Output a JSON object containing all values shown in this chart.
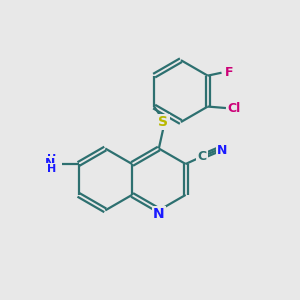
{
  "background_color": "#e8e8e8",
  "bond_color": "#2d7070",
  "bond_width": 1.6,
  "atom_colors": {
    "N": "#1a1aff",
    "S": "#b8b800",
    "Cl": "#cc0077",
    "F": "#cc0077",
    "C": "#2d7070",
    "NH2": "#1a1aff"
  },
  "font_size": 9,
  "dpi": 100,
  "fig_w": 3.0,
  "fig_h": 3.0
}
